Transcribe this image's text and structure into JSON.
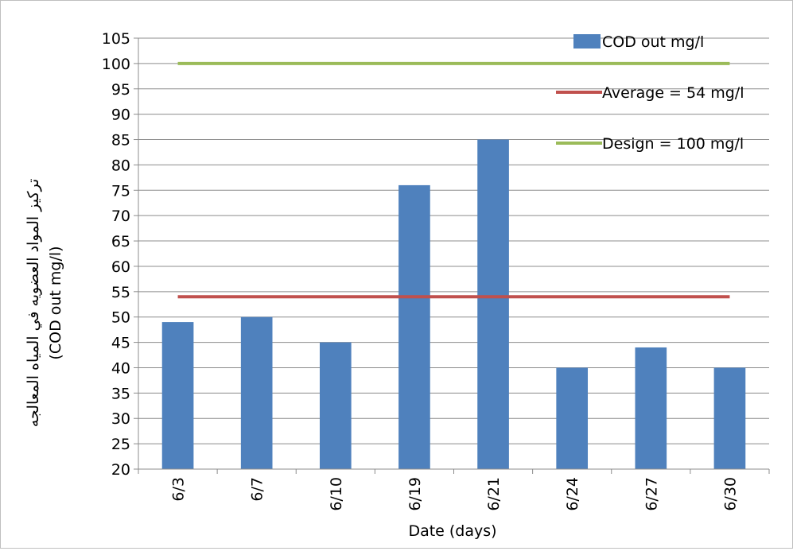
{
  "chart_data": {
    "type": "bar",
    "categories": [
      "6/3",
      "6/7",
      "6/10",
      "6/19",
      "6/21",
      "6/24",
      "6/27",
      "6/30"
    ],
    "series": [
      {
        "name": "COD out mg/l",
        "kind": "bar",
        "values": [
          49,
          50,
          45,
          76,
          85,
          40,
          44,
          40
        ],
        "color": "#4f81bd"
      },
      {
        "name": "Average = 54 mg/l",
        "kind": "line",
        "values": [
          54,
          54,
          54,
          54,
          54,
          54,
          54,
          54
        ],
        "color": "#c0504d"
      },
      {
        "name": "Design = 100 mg/l",
        "kind": "line",
        "values": [
          100,
          100,
          100,
          100,
          100,
          100,
          100,
          100
        ],
        "color": "#9bbb59"
      }
    ],
    "xlabel": "Date (days)",
    "ylabel_line1": "تركيز المواد العضويه في المياه المعالجه",
    "ylabel_line2": "(COD out mg/l)",
    "ylim": [
      20,
      105
    ],
    "ytick_step": 5,
    "grid": true,
    "legend_position": "top-right"
  }
}
